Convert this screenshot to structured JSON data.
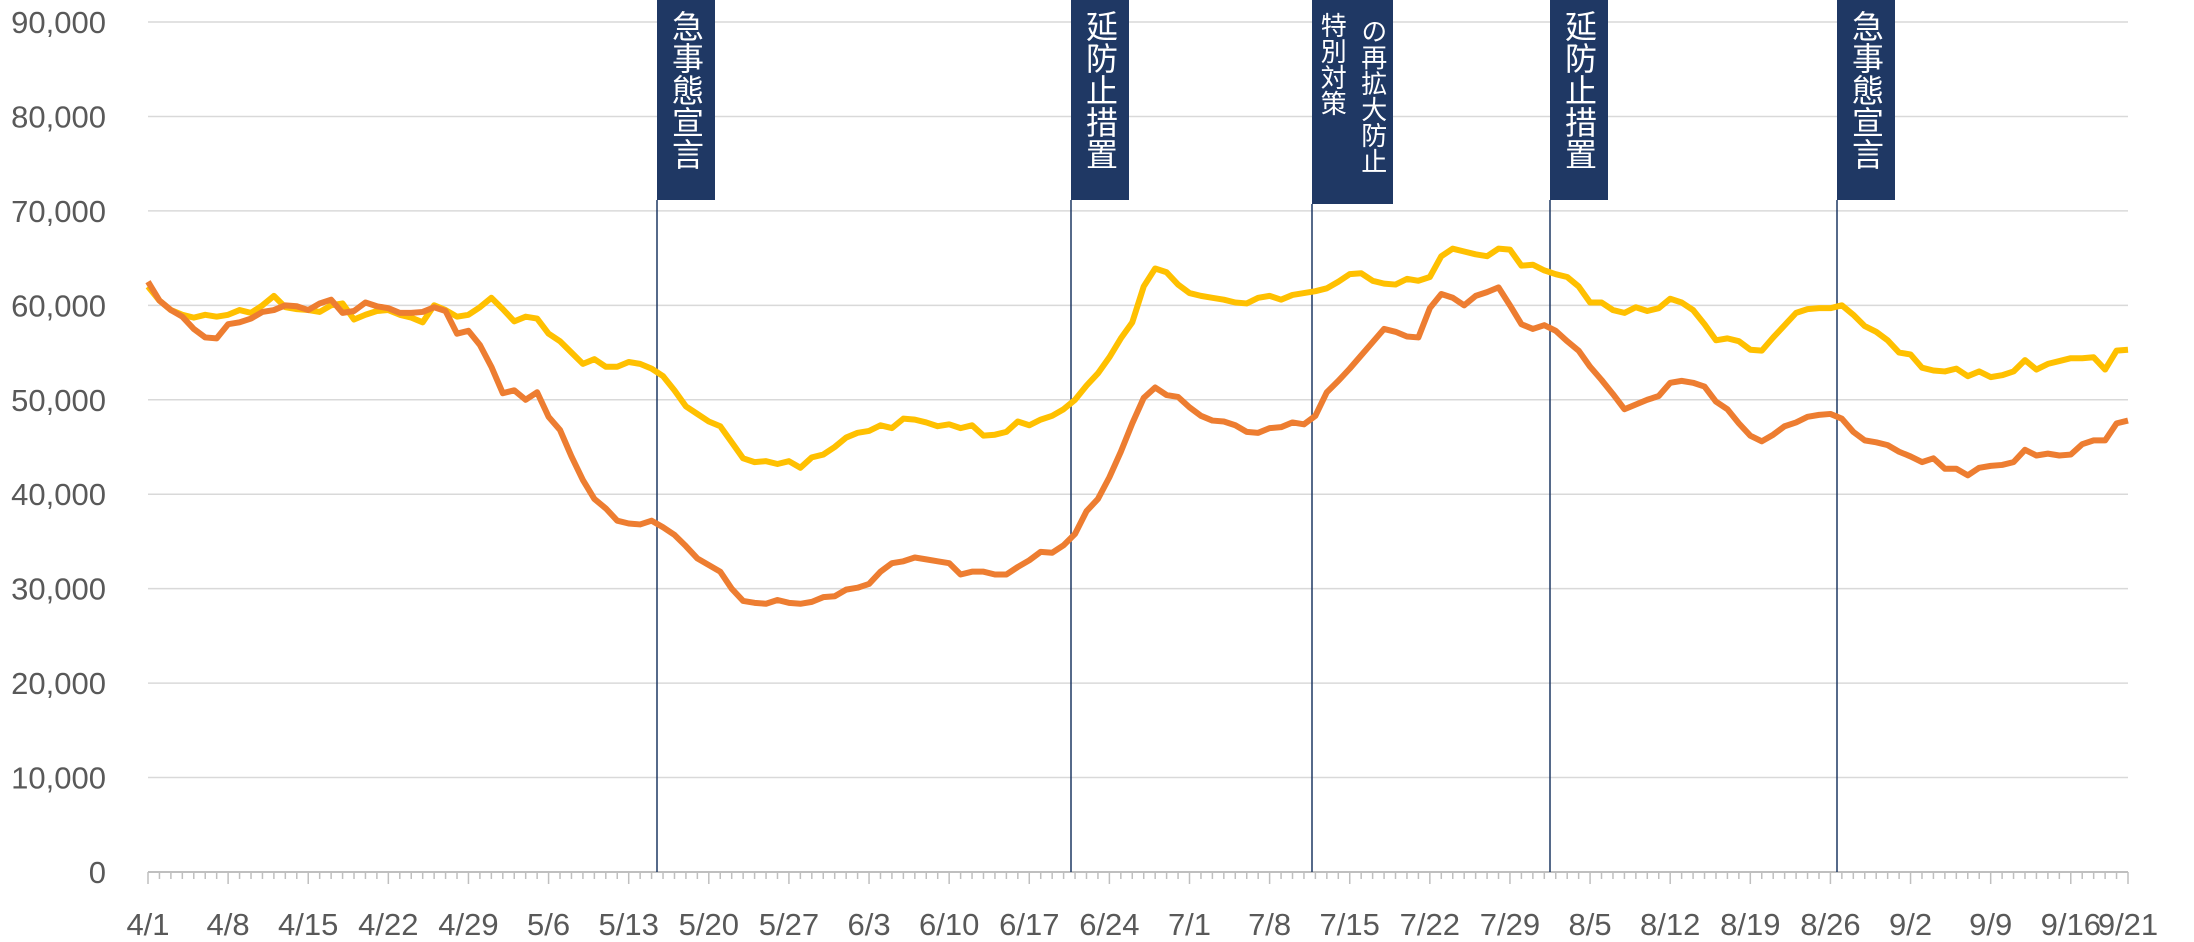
{
  "chart_data": {
    "type": "line",
    "categories": [
      "4/1",
      null,
      null,
      null,
      null,
      null,
      null,
      "4/8",
      null,
      null,
      null,
      null,
      null,
      null,
      "4/15",
      null,
      null,
      null,
      null,
      null,
      null,
      "4/22",
      null,
      null,
      null,
      null,
      null,
      null,
      "4/29",
      null,
      null,
      null,
      null,
      null,
      null,
      "5/6",
      null,
      null,
      null,
      null,
      null,
      null,
      "5/13",
      null,
      null,
      null,
      null,
      null,
      null,
      "5/20",
      null,
      null,
      null,
      null,
      null,
      null,
      "5/27",
      null,
      null,
      null,
      null,
      null,
      null,
      "6/3",
      null,
      null,
      null,
      null,
      null,
      null,
      "6/10",
      null,
      null,
      null,
      null,
      null,
      null,
      "6/17",
      null,
      null,
      null,
      null,
      null,
      null,
      "6/24",
      null,
      null,
      null,
      null,
      null,
      null,
      "7/1",
      null,
      null,
      null,
      null,
      null,
      null,
      "7/8",
      null,
      null,
      null,
      null,
      null,
      null,
      "7/15",
      null,
      null,
      null,
      null,
      null,
      null,
      "7/22",
      null,
      null,
      null,
      null,
      null,
      null,
      "7/29",
      null,
      null,
      null,
      null,
      null,
      null,
      "8/5",
      null,
      null,
      null,
      null,
      null,
      null,
      "8/12",
      null,
      null,
      null,
      null,
      null,
      null,
      "8/19",
      null,
      null,
      null,
      null,
      null,
      null,
      "8/26",
      null,
      null,
      null,
      null,
      null,
      null,
      "9/2",
      null,
      null,
      null,
      null,
      null,
      null,
      "9/9",
      null,
      null,
      null,
      null,
      null,
      null,
      "9/16",
      null,
      null,
      null,
      null,
      "9/21"
    ],
    "series": [
      {
        "color": "#FFC000",
        "values": [
          62000,
          60500,
          59500,
          59000,
          58700,
          59000,
          58800,
          59000,
          59500,
          59200,
          60000,
          61000,
          59800,
          59600,
          59500,
          59300,
          60000,
          60200,
          58500,
          59000,
          59400,
          59500,
          59000,
          58700,
          58200,
          60000,
          59500,
          58800,
          59000,
          59800,
          60800,
          59600,
          58300,
          58800,
          58600,
          57000,
          56200,
          55000,
          53800,
          54300,
          53500,
          53500,
          54000,
          53800,
          53300,
          52500,
          51000,
          49300,
          48500,
          47700,
          47200,
          45500,
          43800,
          43400,
          43500,
          43200,
          43500,
          42800,
          43900,
          44200,
          45000,
          46000,
          46500,
          46700,
          47300,
          47000,
          48000,
          47900,
          47600,
          47200,
          47400,
          47000,
          47300,
          46200,
          46300,
          46600,
          47700,
          47300,
          47900,
          48300,
          49000,
          50000,
          51500,
          52800,
          54500,
          56500,
          58200,
          62000,
          63900,
          63500,
          62200,
          61300,
          61000,
          60800,
          60600,
          60300,
          60200,
          60800,
          61000,
          60600,
          61100,
          61300,
          61500,
          61800,
          62500,
          63300,
          63400,
          62600,
          62300,
          62200,
          62800,
          62600,
          63000,
          65200,
          66000,
          65700,
          65400,
          65200,
          66000,
          65900,
          64200,
          64300,
          63700,
          63300,
          63000,
          62000,
          60300,
          60300,
          59500,
          59200,
          59800,
          59400,
          59700,
          60700,
          60300,
          59500,
          58000,
          56300,
          56500,
          56200,
          55300,
          55200,
          56600,
          57900,
          59200,
          59600,
          59700,
          59700,
          60000,
          59000,
          57800,
          57200,
          56300,
          55000,
          54800,
          53400,
          53100,
          53000,
          53300,
          52500,
          53000,
          52400,
          52600,
          53000,
          54200,
          53200,
          53800,
          54100,
          54400,
          54400,
          54500,
          53200,
          55200,
          55300
        ]
      },
      {
        "color": "#ED7D31",
        "values": [
          62500,
          60500,
          59500,
          58800,
          57500,
          56600,
          56500,
          58000,
          58200,
          58600,
          59300,
          59500,
          60000,
          59900,
          59500,
          60200,
          60600,
          59200,
          59400,
          60300,
          59900,
          59700,
          59200,
          59200,
          59300,
          59800,
          59400,
          57000,
          57300,
          55800,
          53500,
          50700,
          51000,
          50000,
          50800,
          48200,
          46800,
          44000,
          41500,
          39500,
          38500,
          37200,
          36900,
          36800,
          37200,
          36500,
          35700,
          34500,
          33200,
          32500,
          31800,
          30000,
          28700,
          28500,
          28400,
          28800,
          28500,
          28400,
          28600,
          29100,
          29200,
          29900,
          30100,
          30500,
          31800,
          32700,
          32900,
          33300,
          33100,
          32900,
          32700,
          31500,
          31800,
          31800,
          31500,
          31500,
          32300,
          33000,
          33900,
          33800,
          34600,
          35800,
          38200,
          39500,
          41800,
          44500,
          47500,
          50200,
          51300,
          50500,
          50300,
          49200,
          48300,
          47800,
          47700,
          47300,
          46600,
          46500,
          47000,
          47100,
          47600,
          47400,
          48300,
          50800,
          52000,
          53300,
          54700,
          56100,
          57500,
          57200,
          56700,
          56600,
          59700,
          61200,
          60800,
          60000,
          61000,
          61400,
          61900,
          60000,
          58000,
          57500,
          57900,
          57300,
          56200,
          55200,
          53500,
          52100,
          50600,
          49000,
          49500,
          50000,
          50400,
          51800,
          52000,
          51800,
          51400,
          49800,
          49000,
          47500,
          46200,
          45600,
          46300,
          47200,
          47600,
          48200,
          48400,
          48500,
          48000,
          46600,
          45700,
          45500,
          45200,
          44500,
          44000,
          43400,
          43800,
          42700,
          42700,
          42000,
          42800,
          43000,
          43100,
          43400,
          44700,
          44100,
          44300,
          44100,
          44200,
          45300,
          45700,
          45700,
          47500,
          47800
        ]
      }
    ],
    "ylim": [
      0,
      90000
    ],
    "yticks": [
      0,
      {
        "value": 10000,
        "label": "10,000"
      },
      {
        "value": 20000,
        "label": "20,000"
      },
      {
        "value": 30000,
        "label": "30,000"
      },
      {
        "value": 40000,
        "label": "40,000"
      },
      {
        "value": 50000,
        "label": "50,000"
      },
      {
        "value": 60000,
        "label": "60,000"
      },
      {
        "value": 70000,
        "label": "70,000"
      },
      {
        "value": 80000,
        "label": "80,000"
      },
      {
        "value": 90000,
        "label": "90,000"
      }
    ],
    "grid": true,
    "annotations": [
      {
        "lines": [
          "急事態宣言"
        ]
      },
      {
        "lines": [
          "延防止措置"
        ]
      },
      {
        "lines": [
          "の再拡大防止",
          "特別対策"
        ]
      },
      {
        "lines": [
          "延防止措置"
        ]
      },
      {
        "lines": [
          "急事態宣言"
        ]
      }
    ]
  }
}
